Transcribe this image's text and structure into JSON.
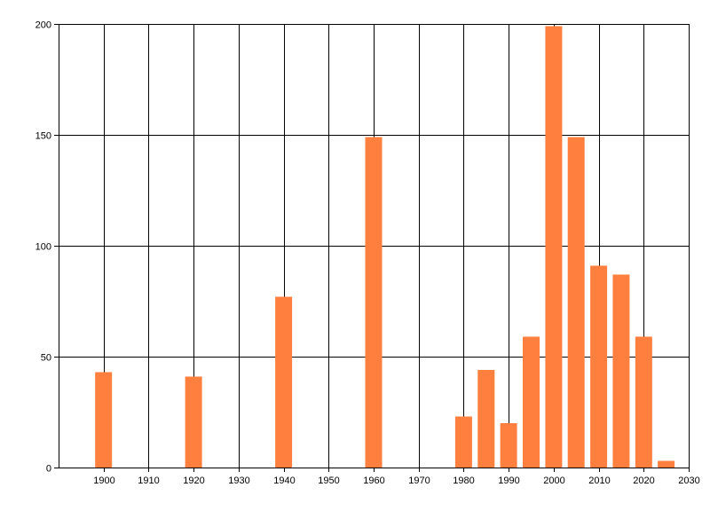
{
  "chart_data": {
    "type": "bar",
    "title": "",
    "xlabel": "",
    "ylabel": "",
    "xlim": [
      1890,
      2030
    ],
    "ylim": [
      0,
      200
    ],
    "xticks": [
      1900,
      1910,
      1920,
      1930,
      1940,
      1950,
      1960,
      1970,
      1980,
      1990,
      2000,
      2010,
      2020,
      2030
    ],
    "yticks": [
      0,
      50,
      100,
      150,
      200
    ],
    "grid": true,
    "legend": "none",
    "bar_color": "#ff7f3f",
    "x": [
      1900,
      1920,
      1940,
      1960,
      1980,
      1985,
      1990,
      1995,
      2000,
      2005,
      2010,
      2015,
      2020,
      2025
    ],
    "values": [
      43,
      41,
      77,
      149,
      23,
      44,
      20,
      59,
      199,
      149,
      91,
      87,
      59,
      3
    ]
  }
}
